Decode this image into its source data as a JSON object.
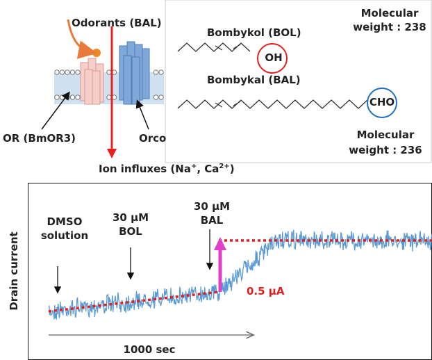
{
  "top": {
    "odorant_label": "Odorants (BAL)",
    "receptor_labels": [
      "OR (BmOR3)",
      "Orco"
    ],
    "ion_influx": {
      "text": "Ion influxes (Na",
      "sup1": "+",
      "mid": ", Ca",
      "sup2": "2+",
      "end": ")"
    },
    "molecules": [
      {
        "name": "Bombykol (BOL)",
        "group": "OH",
        "weight": [
          "Molecular",
          "weight : 238"
        ]
      },
      {
        "name": "Bombykal (BAL)",
        "group": "CHO",
        "weight": [
          "Molecular",
          "weight : 236"
        ]
      }
    ]
  },
  "trace": {
    "y_label": "Drain current",
    "events": [
      [
        "DMSO",
        "solution"
      ],
      [
        "30 µM",
        "BOL"
      ],
      [
        "30 µM",
        "BAL"
      ]
    ],
    "step_label": "0.5 µA",
    "time_label": "1000 sec"
  }
}
